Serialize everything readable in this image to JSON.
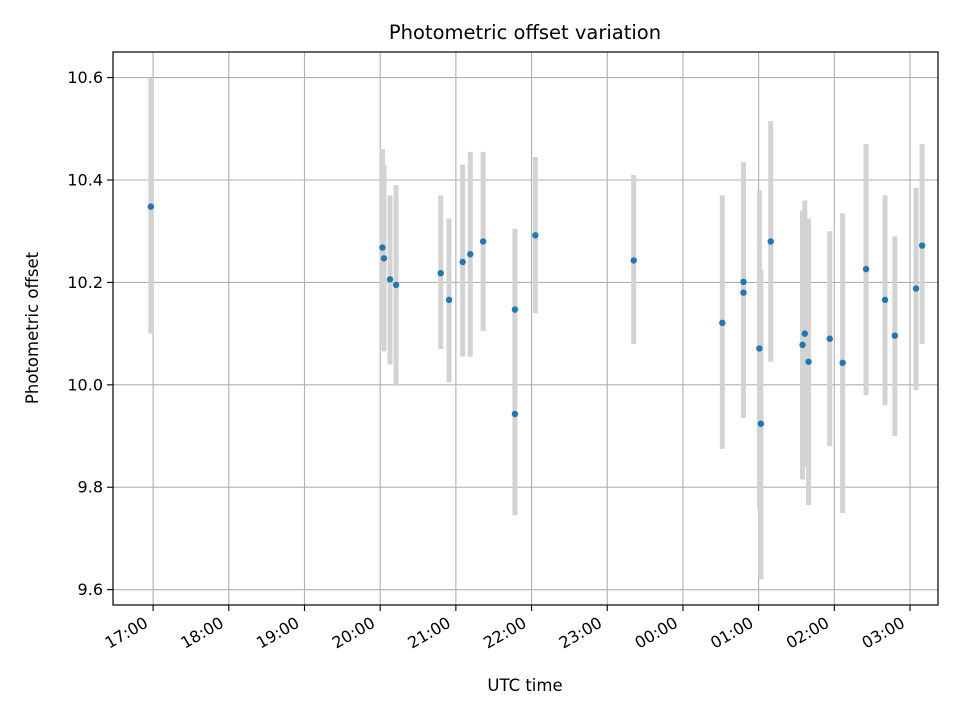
{
  "chart_data": {
    "type": "scatter",
    "title": "Photometric offset variation",
    "xlabel": "UTC time",
    "ylabel": "Photometric offset",
    "x_ticks": [
      "17:00",
      "18:00",
      "19:00",
      "20:00",
      "21:00",
      "22:00",
      "23:00",
      "00:00",
      "01:00",
      "02:00",
      "03:00"
    ],
    "x_tick_hours": [
      17,
      18,
      19,
      20,
      21,
      22,
      23,
      24,
      25,
      26,
      27
    ],
    "xlim_hours": [
      16.47,
      27.37
    ],
    "ylim": [
      9.57,
      10.65
    ],
    "y_ticks": [
      9.6,
      9.8,
      10.0,
      10.2,
      10.4,
      10.6
    ],
    "y_tick_labels": [
      "9.6",
      "9.8",
      "10.0",
      "10.2",
      "10.4",
      "10.6"
    ],
    "grid": true,
    "point_color": "#1f77b4",
    "errorbar_color": "#d3d3d3",
    "points": [
      {
        "t": 16.97,
        "y": 10.348,
        "lo": 10.1,
        "hi": 10.6
      },
      {
        "t": 20.03,
        "y": 10.268,
        "lo": 10.08,
        "hi": 10.46
      },
      {
        "t": 20.05,
        "y": 10.247,
        "lo": 10.065,
        "hi": 10.43
      },
      {
        "t": 20.13,
        "y": 10.206,
        "lo": 10.04,
        "hi": 10.37
      },
      {
        "t": 20.21,
        "y": 10.195,
        "lo": 10.0,
        "hi": 10.39
      },
      {
        "t": 20.8,
        "y": 10.218,
        "lo": 10.07,
        "hi": 10.37
      },
      {
        "t": 20.91,
        "y": 10.166,
        "lo": 10.005,
        "hi": 10.325
      },
      {
        "t": 21.09,
        "y": 10.24,
        "lo": 10.055,
        "hi": 10.43
      },
      {
        "t": 21.19,
        "y": 10.255,
        "lo": 10.055,
        "hi": 10.455
      },
      {
        "t": 21.36,
        "y": 10.28,
        "lo": 10.105,
        "hi": 10.455
      },
      {
        "t": 21.78,
        "y": 10.147,
        "lo": 9.985,
        "hi": 10.305
      },
      {
        "t": 21.78,
        "y": 9.943,
        "lo": 9.745,
        "hi": 10.14
      },
      {
        "t": 22.05,
        "y": 10.292,
        "lo": 10.14,
        "hi": 10.445
      },
      {
        "t": 23.35,
        "y": 10.243,
        "lo": 10.08,
        "hi": 10.41
      },
      {
        "t": 24.52,
        "y": 10.121,
        "lo": 9.875,
        "hi": 10.37
      },
      {
        "t": 24.8,
        "y": 10.201,
        "lo": 9.97,
        "hi": 10.435
      },
      {
        "t": 24.8,
        "y": 10.18,
        "lo": 9.935,
        "hi": 10.42
      },
      {
        "t": 25.01,
        "y": 10.071,
        "lo": 9.76,
        "hi": 10.38
      },
      {
        "t": 25.03,
        "y": 9.924,
        "lo": 9.62,
        "hi": 10.225
      },
      {
        "t": 25.16,
        "y": 10.28,
        "lo": 10.045,
        "hi": 10.515
      },
      {
        "t": 25.58,
        "y": 10.078,
        "lo": 9.815,
        "hi": 10.34
      },
      {
        "t": 25.61,
        "y": 10.1,
        "lo": 9.84,
        "hi": 10.36
      },
      {
        "t": 25.66,
        "y": 10.045,
        "lo": 9.765,
        "hi": 10.325
      },
      {
        "t": 25.94,
        "y": 10.09,
        "lo": 9.88,
        "hi": 10.3
      },
      {
        "t": 26.11,
        "y": 10.043,
        "lo": 9.75,
        "hi": 10.335
      },
      {
        "t": 26.42,
        "y": 10.226,
        "lo": 9.98,
        "hi": 10.47
      },
      {
        "t": 26.67,
        "y": 10.166,
        "lo": 9.96,
        "hi": 10.37
      },
      {
        "t": 26.8,
        "y": 10.096,
        "lo": 9.9,
        "hi": 10.29
      },
      {
        "t": 27.08,
        "y": 10.188,
        "lo": 9.99,
        "hi": 10.385
      },
      {
        "t": 27.16,
        "y": 10.272,
        "lo": 10.08,
        "hi": 10.47
      }
    ]
  }
}
